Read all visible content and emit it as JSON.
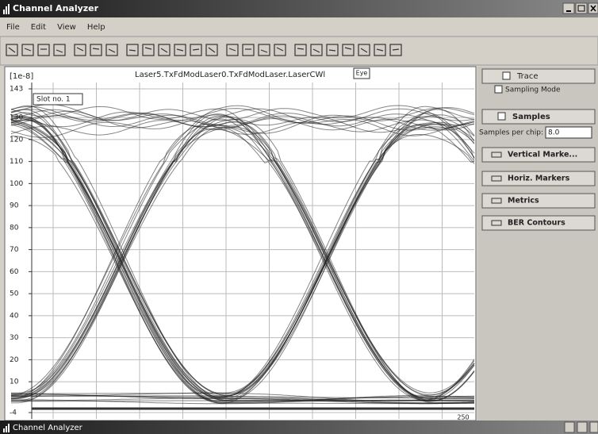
{
  "window": {
    "title": "Channel Analyzer",
    "menu": [
      "File",
      "Edit",
      "View",
      "Help"
    ]
  },
  "plot": {
    "unit_label": "[1e-8]",
    "title": "Laser5.TxFdModLaser0.TxFdModLaser.LaserCWl",
    "tab": "Eye",
    "slot_label": "Slot no. 1",
    "ylim": [
      -4,
      143
    ],
    "yticks": [
      143,
      130,
      120,
      110,
      100,
      90,
      80,
      70,
      60,
      50,
      40,
      30,
      20,
      10,
      -4
    ],
    "x_end_label": "250"
  },
  "panel": {
    "trace": "Trace",
    "sampling_mode": "Sampling Mode",
    "samples": "Samples",
    "samples_per_chip_label": "Samples per chip:",
    "samples_per_chip_value": "8.0",
    "buttons": [
      "Vertical Marke...",
      "Horiz. Markers",
      "Metrics",
      "BER Contours"
    ]
  },
  "taskbar": {
    "title": "Channel Analyzer"
  }
}
